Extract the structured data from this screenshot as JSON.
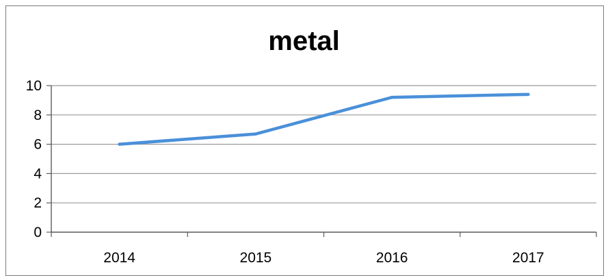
{
  "chart_data": {
    "type": "line",
    "title": "metal",
    "xlabel": "",
    "ylabel": "",
    "categories": [
      "2014",
      "2015",
      "2016",
      "2017"
    ],
    "series": [
      {
        "values": [
          6.0,
          6.7,
          9.2,
          9.4
        ],
        "color": "#4a90d9"
      }
    ],
    "ylim": [
      0,
      10
    ],
    "yticks": [
      0,
      2,
      4,
      6,
      8,
      10
    ],
    "grid": true,
    "legend": "none"
  }
}
